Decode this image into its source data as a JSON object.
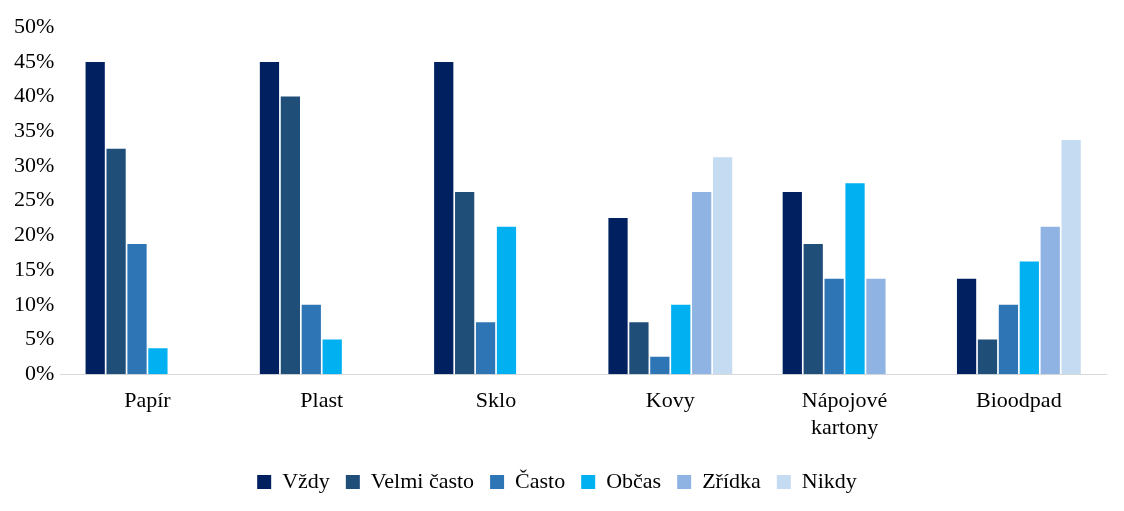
{
  "chart_data": {
    "type": "bar",
    "categories": [
      "Papír",
      "Plast",
      "Sklo",
      "Kovy",
      "Nápojové kartony",
      "Bioodpad"
    ],
    "series": [
      {
        "name": "Vždy",
        "color": "#002060",
        "values": [
          45,
          45,
          45,
          22.5,
          26.25,
          13.75
        ]
      },
      {
        "name": "Velmi často",
        "color": "#1f4e79",
        "values": [
          32.5,
          40,
          26.25,
          7.5,
          18.75,
          5
        ]
      },
      {
        "name": "Často",
        "color": "#2e75b6",
        "values": [
          18.75,
          10,
          7.5,
          2.5,
          13.75,
          10
        ]
      },
      {
        "name": "Občas",
        "color": "#00b0f0",
        "values": [
          3.75,
          5,
          21.25,
          10,
          27.5,
          16.25
        ]
      },
      {
        "name": "Zřídka",
        "color": "#8fb4e3",
        "values": [
          0,
          0,
          0,
          26.25,
          13.75,
          21.25
        ]
      },
      {
        "name": "Nikdy",
        "color": "#c5dbf1",
        "values": [
          0,
          0,
          0,
          31.25,
          0,
          33.75
        ]
      }
    ],
    "ylim": [
      0,
      50
    ],
    "yticks": [
      {
        "value": 0,
        "label": "0%"
      },
      {
        "value": 5,
        "label": "5%"
      },
      {
        "value": 10,
        "label": "10%"
      },
      {
        "value": 15,
        "label": "15%"
      },
      {
        "value": 20,
        "label": "20%"
      },
      {
        "value": 25,
        "label": "25%"
      },
      {
        "value": 30,
        "label": "30%"
      },
      {
        "value": 35,
        "label": "35%"
      },
      {
        "value": 40,
        "label": "40%"
      },
      {
        "value": 45,
        "label": "45%"
      },
      {
        "value": 50,
        "label": "50%"
      }
    ],
    "grid": false,
    "legend": "bottom"
  }
}
